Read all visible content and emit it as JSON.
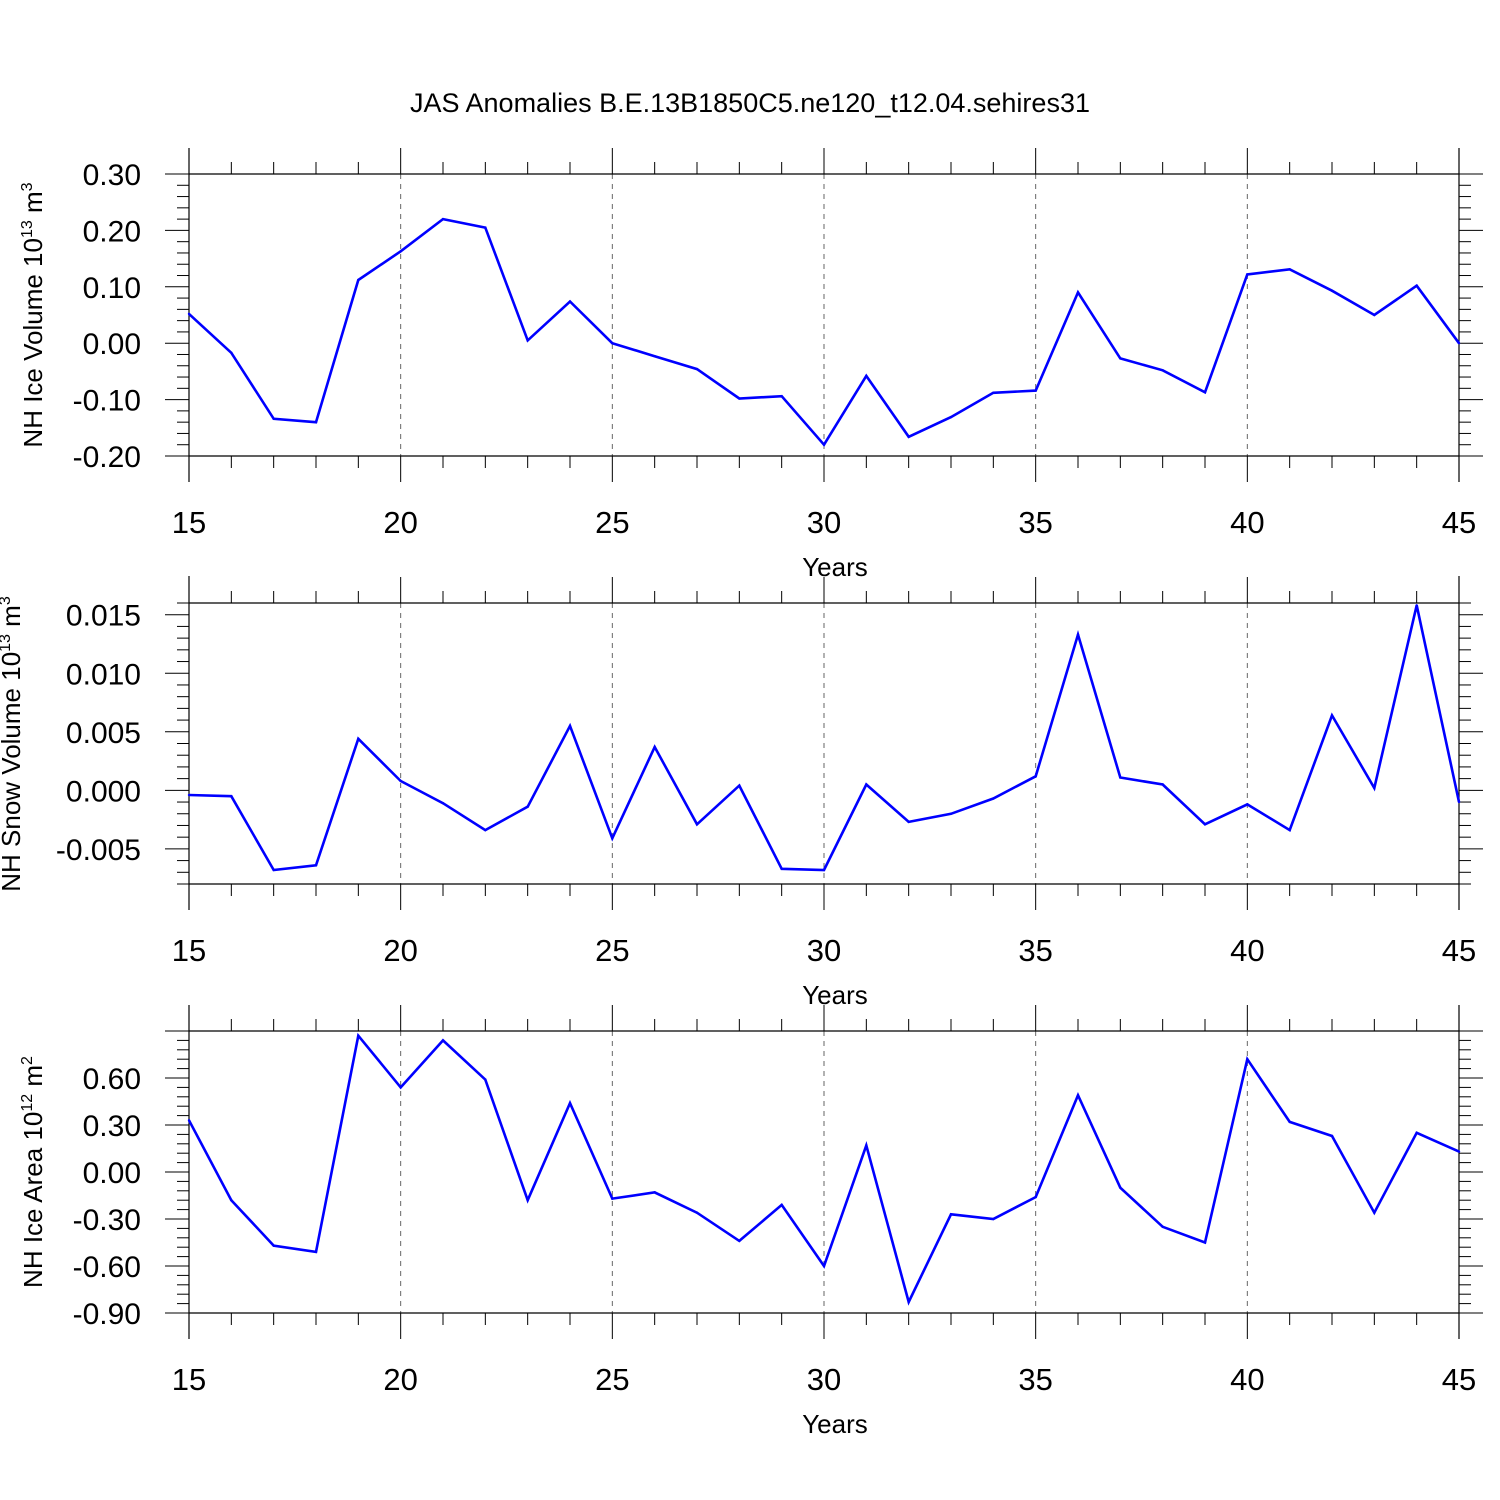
{
  "chart_data": {
    "title": "JAS Anomalies B.E.13B1850C5.ne120_t12.04.sehires31",
    "panels": [
      {
        "type": "line",
        "ylabel": {
          "text": "NH Ice Volume 10",
          "exp": "13",
          "unit_text": " m",
          "unit_exp": "3"
        },
        "xlabel": "Years",
        "xlim": [
          15,
          45
        ],
        "ylim": [
          -0.2,
          0.3
        ],
        "yticks": [
          0.3,
          0.2,
          0.1,
          0.0,
          -0.1,
          -0.2
        ],
        "ytick_labels": [
          "0.30",
          "0.20",
          "0.10",
          "0.00",
          "-0.10",
          "-0.20"
        ],
        "xticks": [
          15,
          20,
          25,
          30,
          35,
          40,
          45
        ],
        "xtick_labels": [
          "15",
          "20",
          "25",
          "30",
          "35",
          "40",
          "45"
        ],
        "color": "#0000ff",
        "x": [
          15,
          16,
          17,
          18,
          19,
          20,
          21,
          22,
          23,
          24,
          25,
          26,
          27,
          28,
          29,
          30,
          31,
          32,
          33,
          34,
          35,
          36,
          37,
          38,
          39,
          40,
          41,
          42,
          43,
          44,
          45
        ],
        "values": [
          0.052,
          -0.017,
          -0.134,
          -0.14,
          0.112,
          0.163,
          0.22,
          0.205,
          0.005,
          0.074,
          0.0,
          -0.023,
          -0.046,
          -0.098,
          -0.094,
          -0.18,
          -0.058,
          -0.166,
          -0.131,
          -0.088,
          -0.084,
          0.09,
          -0.027,
          -0.048,
          -0.087,
          0.122,
          0.131,
          0.093,
          0.05,
          0.102,
          0.0
        ]
      },
      {
        "type": "line",
        "ylabel": {
          "text": "NH Snow Volume 10",
          "exp": "13",
          "unit_text": " m",
          "unit_exp": "3"
        },
        "xlabel": "Years",
        "xlim": [
          15,
          45
        ],
        "ylim": [
          -0.008,
          0.016
        ],
        "yticks": [
          0.015,
          0.01,
          0.005,
          0.0,
          -0.005
        ],
        "ytick_labels": [
          "0.015",
          "0.010",
          "0.005",
          "0.000",
          "-0.005"
        ],
        "xticks": [
          15,
          20,
          25,
          30,
          35,
          40,
          45
        ],
        "xtick_labels": [
          "15",
          "20",
          "25",
          "30",
          "35",
          "40",
          "45"
        ],
        "color": "#0000ff",
        "x": [
          15,
          16,
          17,
          18,
          19,
          20,
          21,
          22,
          23,
          24,
          25,
          26,
          27,
          28,
          29,
          30,
          31,
          32,
          33,
          34,
          35,
          36,
          37,
          38,
          39,
          40,
          41,
          42,
          43,
          44,
          45
        ],
        "values": [
          -0.0004,
          -0.0005,
          -0.0068,
          -0.0064,
          0.0044,
          0.0008,
          -0.0011,
          -0.0034,
          -0.0014,
          0.0055,
          -0.0041,
          0.0037,
          -0.0029,
          0.0004,
          -0.0067,
          -0.0068,
          0.0005,
          -0.0027,
          -0.002,
          -0.0007,
          0.0012,
          0.0133,
          0.0011,
          0.0005,
          -0.0029,
          -0.0012,
          -0.0034,
          0.0064,
          0.0002,
          0.0158,
          -0.001
        ]
      },
      {
        "type": "line",
        "ylabel": {
          "text": "NH Ice Area 10",
          "exp": "12",
          "unit_text": " m",
          "unit_exp": "2"
        },
        "xlabel": "Years",
        "xlim": [
          15,
          45
        ],
        "ylim": [
          -0.9,
          0.9
        ],
        "yticks": [
          0.6,
          0.3,
          0.0,
          -0.3,
          -0.6,
          -0.9
        ],
        "ytick_labels": [
          "0.60",
          "0.30",
          "0.00",
          "-0.30",
          "-0.60",
          "-0.90"
        ],
        "xticks": [
          15,
          20,
          25,
          30,
          35,
          40,
          45
        ],
        "xtick_labels": [
          "15",
          "20",
          "25",
          "30",
          "35",
          "40",
          "45"
        ],
        "color": "#0000ff",
        "x": [
          15,
          16,
          17,
          18,
          19,
          20,
          21,
          22,
          23,
          24,
          25,
          26,
          27,
          28,
          29,
          30,
          31,
          32,
          33,
          34,
          35,
          36,
          37,
          38,
          39,
          40,
          41,
          42,
          43,
          44,
          45
        ],
        "values": [
          0.33,
          -0.18,
          -0.47,
          -0.51,
          0.87,
          0.54,
          0.84,
          0.59,
          -0.18,
          0.44,
          -0.17,
          -0.13,
          -0.26,
          -0.44,
          -0.21,
          -0.6,
          0.17,
          -0.83,
          -0.27,
          -0.3,
          -0.16,
          0.49,
          -0.1,
          -0.35,
          -0.45,
          0.72,
          0.32,
          0.23,
          -0.26,
          0.25,
          0.13
        ]
      }
    ]
  }
}
